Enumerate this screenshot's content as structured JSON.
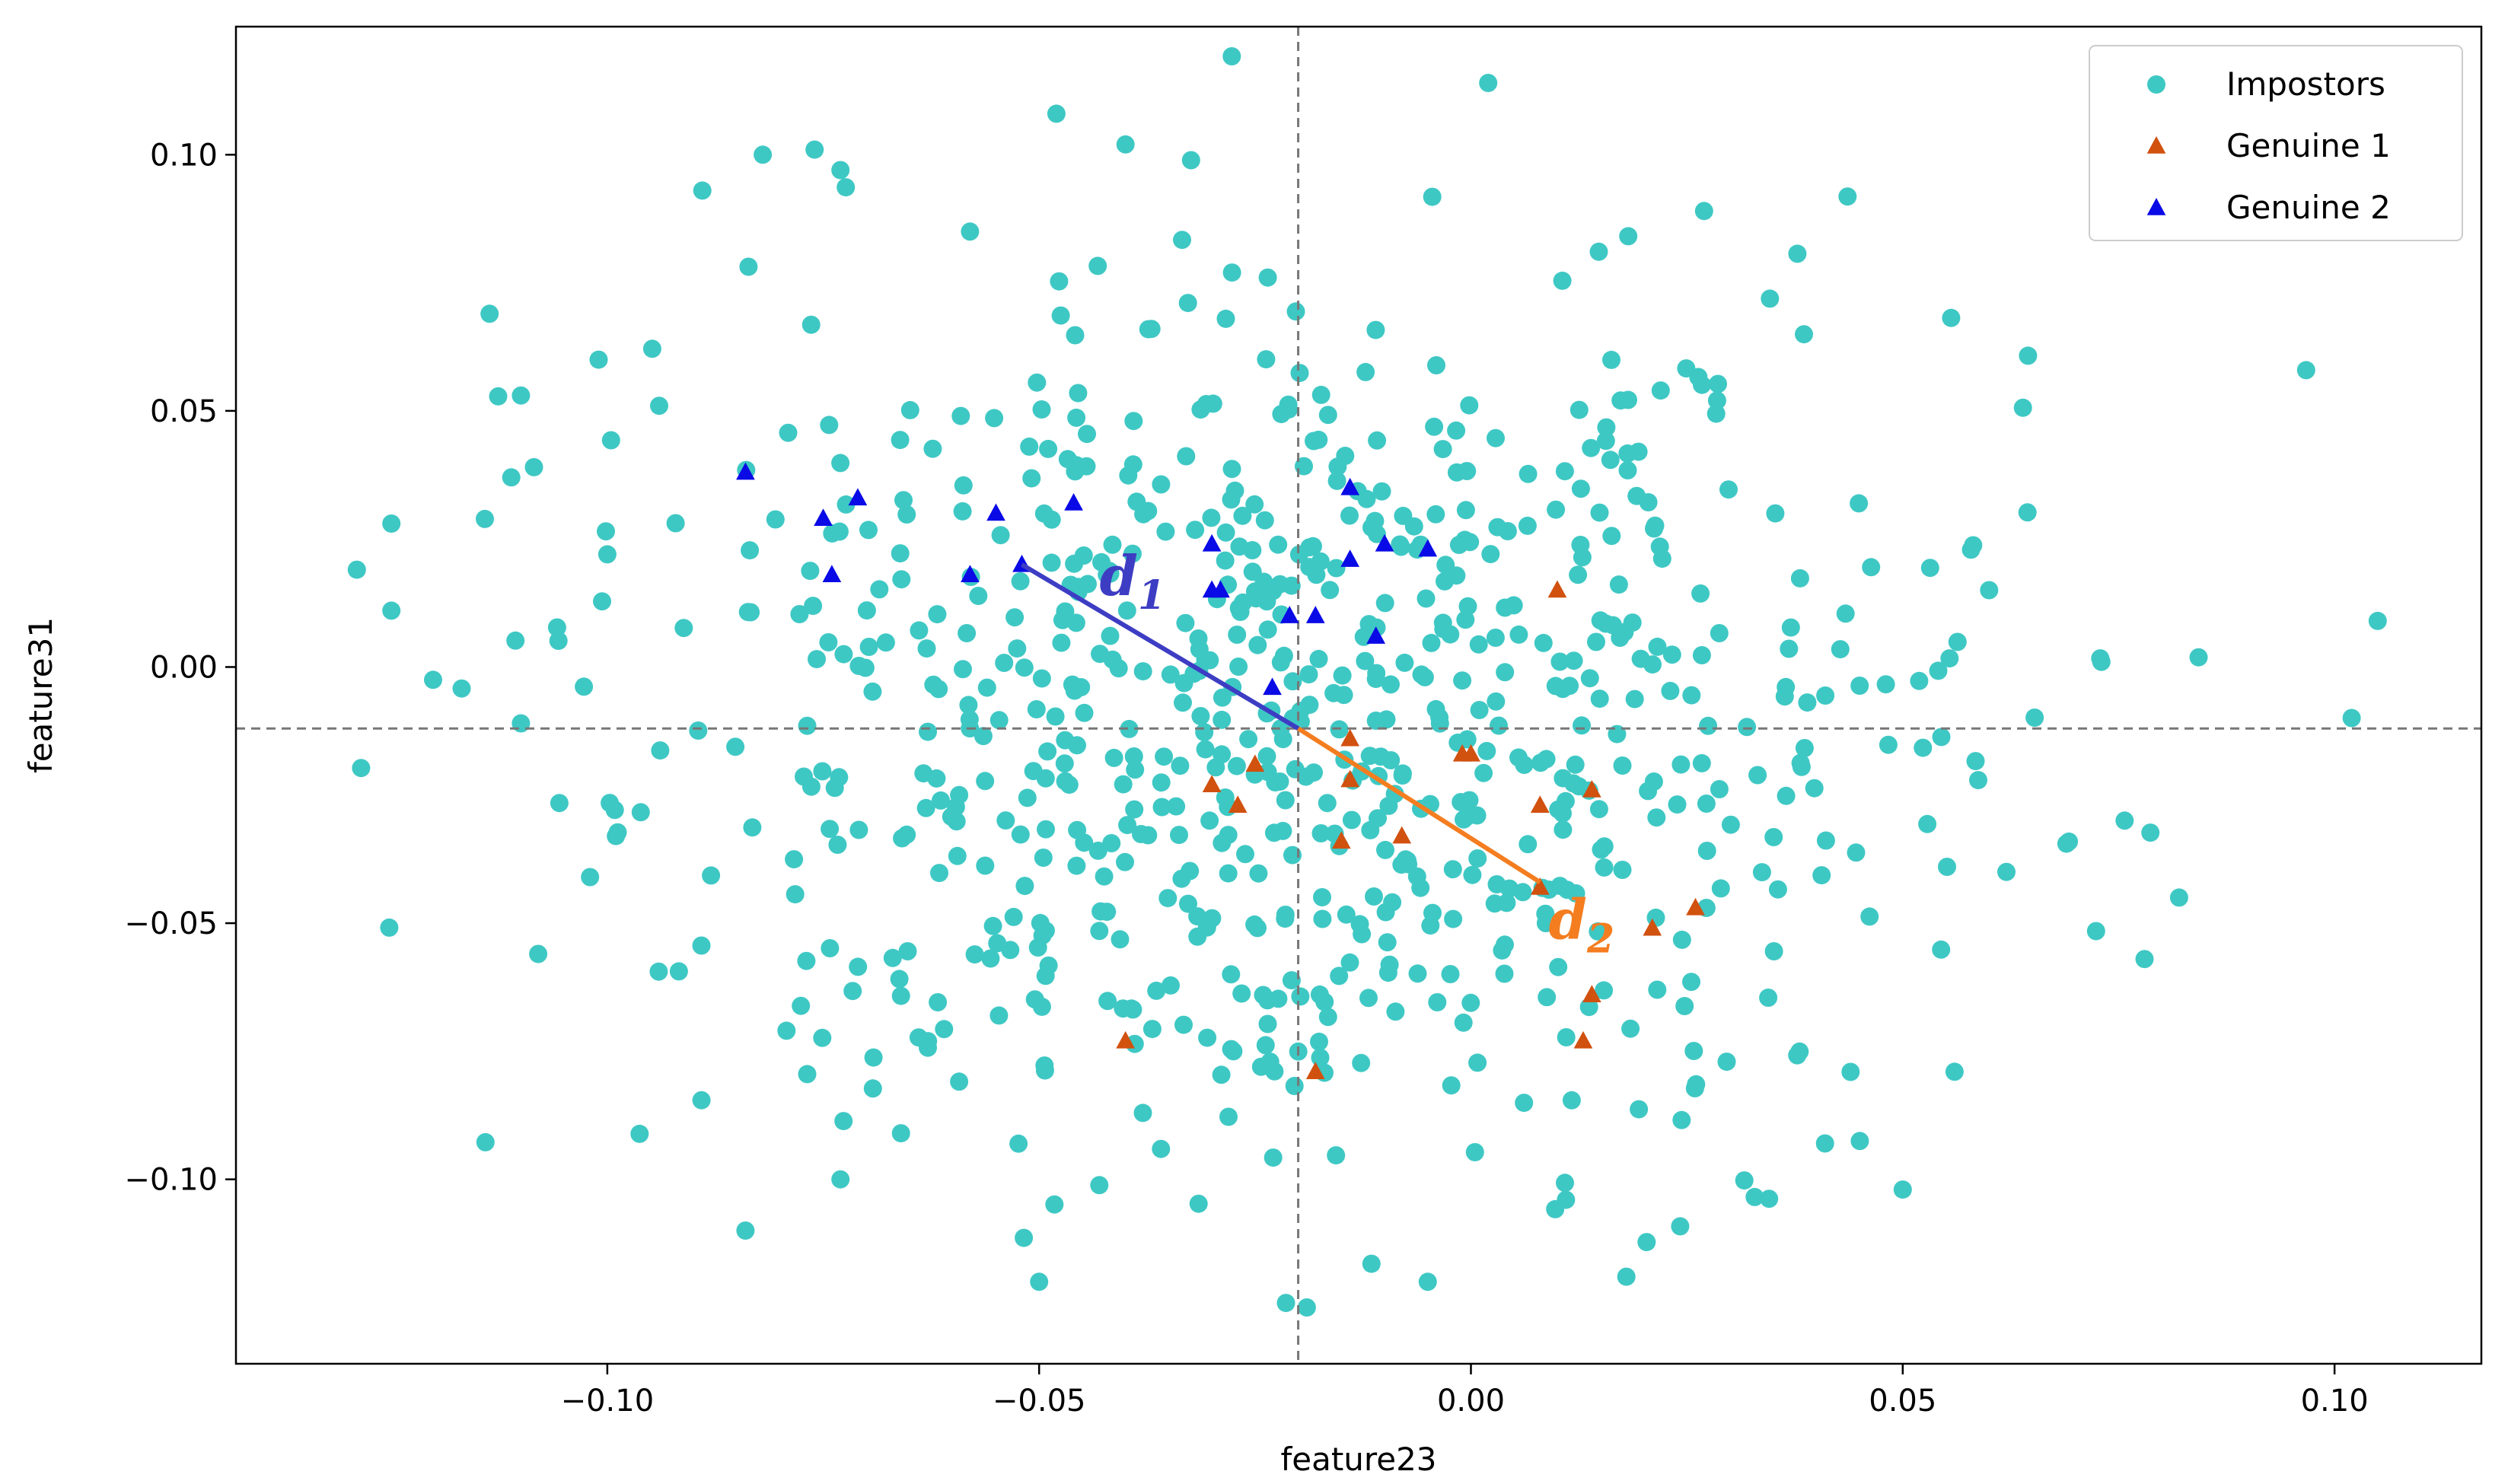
{
  "chart_data": {
    "type": "scatter",
    "xlabel": "feature23",
    "ylabel": "feature31",
    "xlim": [
      -0.143,
      0.117
    ],
    "ylim": [
      -0.136,
      0.125
    ],
    "x_ticks": [
      -0.1,
      -0.05,
      0.0,
      0.05,
      0.1
    ],
    "y_ticks": [
      -0.1,
      -0.05,
      0.0,
      0.05,
      0.1
    ],
    "x_tick_labels": [
      "−0.10",
      "−0.05",
      "0.00",
      "0.05",
      "0.10"
    ],
    "y_tick_labels": [
      "−0.10",
      "−0.05",
      "0.00",
      "0.05",
      "0.10"
    ],
    "grid": false,
    "legend_position": "upper right",
    "reference_lines": {
      "vertical_x": -0.02,
      "horizontal_y": -0.012
    },
    "impostors_color": "#3ec8c4",
    "genuine1_color": "#d1510f",
    "genuine2_color": "#0a0ae6",
    "d1_color": "#3d3dc4",
    "d2_color": "#f47d20",
    "series": [
      {
        "name": "Impostors",
        "marker": "circle",
        "count": 820,
        "seed": 42,
        "center": [
          -0.02,
          -0.012
        ],
        "spread": [
          0.04,
          0.045
        ],
        "points": [
          [
            -0.129,
            0.019
          ],
          [
            -0.125,
            0.028
          ],
          [
            -0.125,
            0.011
          ],
          [
            -0.11,
            0.053
          ],
          [
            -0.11,
            -0.011
          ],
          [
            -0.108,
            -0.056
          ],
          [
            -0.101,
            0.06
          ],
          [
            -0.1,
            0.022
          ],
          [
            -0.099,
            -0.033
          ],
          [
            -0.102,
            -0.041
          ],
          [
            -0.094,
            0.051
          ],
          [
            -0.089,
            0.093
          ],
          [
            -0.082,
            0.1
          ],
          [
            -0.084,
            -0.11
          ],
          [
            -0.076,
            0.101
          ],
          [
            -0.073,
            0.097
          ],
          [
            -0.073,
            -0.1
          ],
          [
            -0.066,
            -0.091
          ],
          [
            -0.05,
            -0.12
          ],
          [
            -0.048,
            0.108
          ],
          [
            -0.04,
            0.102
          ],
          [
            -0.019,
            -0.125
          ],
          [
            -0.005,
            -0.12
          ],
          [
            0.002,
            0.114
          ],
          [
            0.027,
            0.089
          ],
          [
            0.018,
            -0.119
          ],
          [
            0.05,
            -0.102
          ],
          [
            0.073,
            0.001
          ],
          [
            0.082,
            -0.045
          ],
          [
            0.078,
            -0.057
          ],
          [
            0.105,
            0.009
          ],
          [
            0.06,
            0.015
          ],
          [
            0.062,
            -0.04
          ],
          [
            0.056,
            -0.079
          ],
          [
            -0.058,
            0.085
          ],
          [
            -0.037,
            0.066
          ],
          [
            0.011,
            -0.104
          ],
          [
            0.041,
            -0.093
          ]
        ]
      },
      {
        "name": "Genuine 1",
        "marker": "triangle",
        "points": [
          [
            -0.04,
            -0.073
          ],
          [
            -0.03,
            -0.023
          ],
          [
            -0.027,
            -0.027
          ],
          [
            -0.025,
            -0.019
          ],
          [
            -0.018,
            -0.079
          ],
          [
            -0.015,
            -0.034
          ],
          [
            -0.014,
            -0.022
          ],
          [
            -0.014,
            -0.014
          ],
          [
            -0.008,
            -0.033
          ],
          [
            -0.001,
            -0.017
          ],
          [
            0.0,
            -0.017
          ],
          [
            0.008,
            -0.027
          ],
          [
            0.008,
            -0.043
          ],
          [
            0.01,
            0.015
          ],
          [
            0.013,
            -0.073
          ],
          [
            0.014,
            -0.064
          ],
          [
            0.014,
            -0.024
          ],
          [
            0.021,
            -0.051
          ],
          [
            0.026,
            -0.047
          ]
        ]
      },
      {
        "name": "Genuine 2",
        "marker": "triangle",
        "points": [
          [
            -0.084,
            0.038
          ],
          [
            -0.075,
            0.029
          ],
          [
            -0.074,
            0.018
          ],
          [
            -0.071,
            0.033
          ],
          [
            -0.058,
            0.018
          ],
          [
            -0.055,
            0.03
          ],
          [
            -0.052,
            0.02
          ],
          [
            -0.046,
            0.032
          ],
          [
            -0.03,
            0.024
          ],
          [
            -0.03,
            0.015
          ],
          [
            -0.029,
            0.015
          ],
          [
            -0.023,
            -0.004
          ],
          [
            -0.021,
            0.01
          ],
          [
            -0.018,
            0.01
          ],
          [
            -0.014,
            0.035
          ],
          [
            -0.014,
            0.021
          ],
          [
            -0.011,
            0.006
          ],
          [
            -0.01,
            0.024
          ],
          [
            -0.005,
            0.023
          ]
        ]
      }
    ],
    "annotations": [
      {
        "base": "d",
        "sub": "1",
        "line_from": [
          -0.052,
          0.02
        ],
        "line_to": [
          -0.02,
          -0.012
        ],
        "label_at": [
          -0.043,
          0.014
        ]
      },
      {
        "base": "d",
        "sub": "2",
        "line_from": [
          -0.02,
          -0.012
        ],
        "line_to": [
          0.008,
          -0.042
        ],
        "label_at": [
          0.009,
          -0.053
        ]
      }
    ]
  }
}
